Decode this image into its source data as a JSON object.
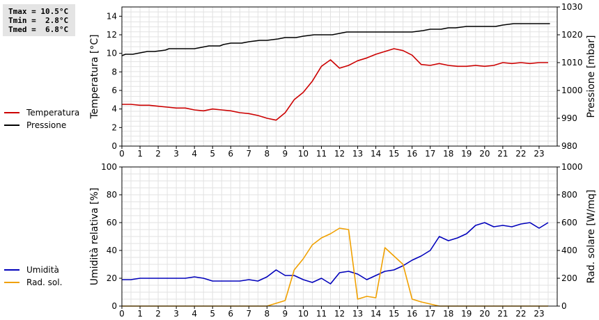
{
  "stats": {
    "tmax": "Tmax = 10.5°C",
    "tmin": "Tmin =  2.8°C",
    "tmed": "Tmed =  6.8°C"
  },
  "legend_top": [
    {
      "label": "Temperatura",
      "color": "#cc0000"
    },
    {
      "label": "Pressione",
      "color": "#000000"
    }
  ],
  "legend_bottom": [
    {
      "label": "Umidità",
      "color": "#0000bb"
    },
    {
      "label": "Rad. sol.",
      "color": "#f0a000"
    }
  ],
  "chart_data": [
    {
      "type": "line",
      "ylabel": "Temperatura [°C]",
      "ylabel2": "Pressione [mbar]",
      "xticks": [
        "0",
        "1",
        "2",
        "3",
        "4",
        "5",
        "6",
        "7",
        "8",
        "9",
        "10",
        "11",
        "12",
        "13",
        "14",
        "15",
        "16",
        "17",
        "18",
        "19",
        "20",
        "21",
        "22",
        "23"
      ],
      "xlim": [
        0,
        24
      ],
      "ylim": [
        0,
        15
      ],
      "yticks": [
        0,
        2,
        4,
        6,
        8,
        10,
        12,
        14
      ],
      "ylim2": [
        980,
        1030
      ],
      "yticks2": [
        980,
        990,
        1000,
        1010,
        1020,
        1030
      ],
      "grid": true,
      "series": [
        {
          "name": "Temperatura",
          "axis": "left",
          "color": "#cc0000",
          "x": [
            0,
            0.5,
            1,
            1.5,
            2,
            2.5,
            3,
            3.5,
            4,
            4.5,
            5,
            5.5,
            6,
            6.5,
            7,
            7.5,
            8,
            8.5,
            9,
            9.5,
            10,
            10.5,
            11,
            11.5,
            12,
            12.5,
            13,
            13.5,
            14,
            14.5,
            15,
            15.5,
            16,
            16.5,
            17,
            17.5,
            18,
            18.5,
            19,
            19.5,
            20,
            20.5,
            21,
            21.5,
            22,
            22.5,
            23,
            23.5
          ],
          "y": [
            4.5,
            4.5,
            4.4,
            4.4,
            4.3,
            4.2,
            4.1,
            4.1,
            3.9,
            3.8,
            4.0,
            3.9,
            3.8,
            3.6,
            3.5,
            3.3,
            3.0,
            2.8,
            3.6,
            5.0,
            5.8,
            7.0,
            8.6,
            9.3,
            8.4,
            8.7,
            9.2,
            9.5,
            9.9,
            10.2,
            10.5,
            10.3,
            9.8,
            8.8,
            8.7,
            8.9,
            8.7,
            8.6,
            8.6,
            8.7,
            8.6,
            8.7,
            9.0,
            8.9,
            9.0,
            8.9,
            9.0,
            9.0
          ]
        },
        {
          "name": "Pressione",
          "axis": "right",
          "color": "#000000",
          "x": [
            0,
            0.2,
            0.6,
            1,
            1.4,
            1.8,
            2.4,
            2.6,
            3.2,
            4,
            4.4,
            4.8,
            5.4,
            5.6,
            6,
            6.6,
            7,
            7.6,
            8,
            8.6,
            9,
            9.6,
            10,
            10.6,
            11,
            11.6,
            12,
            12.4,
            13,
            13.6,
            14,
            14.6,
            15,
            15.6,
            16,
            16.6,
            17,
            17.6,
            18,
            18.4,
            19,
            19.6,
            20,
            20.6,
            21,
            21.6,
            22,
            22.6,
            23,
            23.6
          ],
          "y": [
            1012.5,
            1013,
            1013,
            1013.5,
            1014,
            1014,
            1014.5,
            1015,
            1015,
            1015,
            1015.5,
            1016,
            1016,
            1016.5,
            1017,
            1017,
            1017.5,
            1018,
            1018,
            1018.5,
            1019,
            1019,
            1019.5,
            1020,
            1020,
            1020,
            1020.5,
            1021,
            1021,
            1021,
            1021,
            1021,
            1021,
            1021,
            1021,
            1021.5,
            1022,
            1022,
            1022.5,
            1022.5,
            1023,
            1023,
            1023,
            1023,
            1023.5,
            1024,
            1024,
            1024,
            1024,
            1024
          ]
        }
      ]
    },
    {
      "type": "line",
      "ylabel": "Umidità relativa [%]",
      "ylabel2": "Rad. solare [W/mq]",
      "xticks": [
        "0",
        "1",
        "2",
        "3",
        "4",
        "5",
        "6",
        "7",
        "8",
        "9",
        "10",
        "11",
        "12",
        "13",
        "14",
        "15",
        "16",
        "17",
        "18",
        "19",
        "20",
        "21",
        "22",
        "23"
      ],
      "xlim": [
        0,
        24
      ],
      "ylim": [
        0,
        100
      ],
      "yticks": [
        0,
        20,
        40,
        60,
        80,
        100
      ],
      "ylim2": [
        0,
        1000
      ],
      "yticks2": [
        0,
        200,
        400,
        600,
        800,
        1000
      ],
      "grid": true,
      "series": [
        {
          "name": "Umidità",
          "axis": "left",
          "color": "#0000bb",
          "x": [
            0,
            0.5,
            1,
            1.5,
            2,
            2.5,
            3,
            3.5,
            4,
            4.5,
            5,
            5.5,
            6,
            6.5,
            7,
            7.5,
            8,
            8.5,
            9,
            9.5,
            10,
            10.5,
            11,
            11.5,
            12,
            12.5,
            13,
            13.5,
            14,
            14.5,
            15,
            15.5,
            16,
            16.5,
            17,
            17.5,
            18,
            18.5,
            19,
            19.5,
            20,
            20.5,
            21,
            21.5,
            22,
            22.5,
            23,
            23.5
          ],
          "y": [
            19,
            19,
            20,
            20,
            20,
            20,
            20,
            20,
            21,
            20,
            18,
            18,
            18,
            18,
            19,
            18,
            21,
            26,
            22,
            22,
            19,
            17,
            20,
            16,
            24,
            25,
            23,
            19,
            22,
            25,
            26,
            29,
            33,
            36,
            40,
            50,
            47,
            49,
            52,
            58,
            60,
            57,
            58,
            57,
            59,
            60,
            56,
            60
          ]
        },
        {
          "name": "Rad. sol.",
          "axis": "right",
          "color": "#f0a000",
          "x": [
            0,
            1,
            2,
            3,
            4,
            5,
            6,
            7,
            7.5,
            8,
            8.5,
            9,
            9.5,
            10,
            10.5,
            11,
            11.5,
            12,
            12.5,
            13,
            13.5,
            14,
            14.5,
            15,
            15.5,
            16,
            16.5,
            17,
            17.5,
            18,
            19,
            20,
            21,
            22,
            23,
            23.5
          ],
          "y": [
            0,
            0,
            0,
            0,
            0,
            0,
            0,
            0,
            0,
            0,
            20,
            40,
            260,
            340,
            440,
            490,
            520,
            560,
            550,
            50,
            70,
            60,
            420,
            360,
            300,
            50,
            30,
            15,
            0,
            0,
            0,
            0,
            0,
            0,
            0,
            0
          ]
        }
      ]
    }
  ]
}
